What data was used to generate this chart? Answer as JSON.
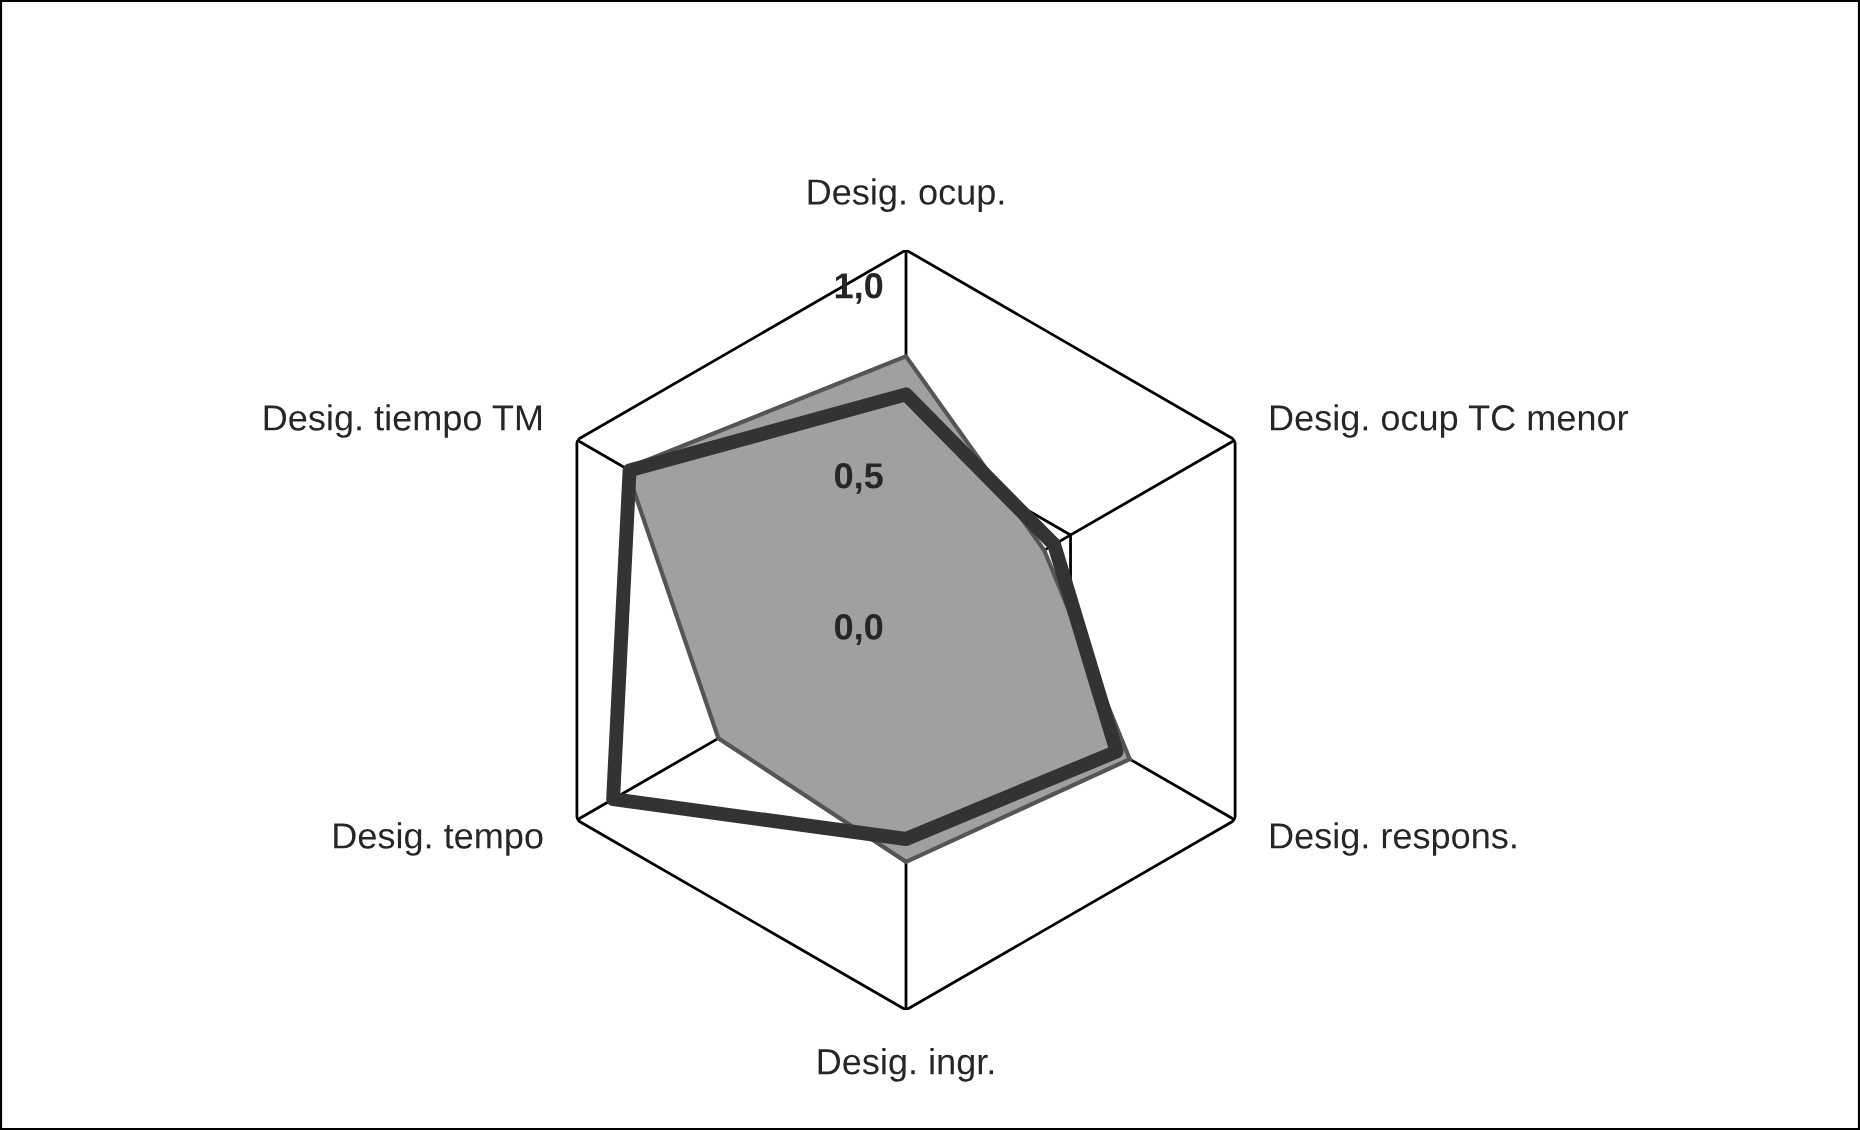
{
  "chart_data": {
    "type": "radar",
    "categories": [
      "Desig. ocup.",
      "Desig. ocup TC menor",
      "Desig. respons.",
      "Desig. ingr.",
      "Desig. tempo",
      "Desig. tiempo TM"
    ],
    "ylim": [
      0,
      1
    ],
    "yticks": [
      {
        "value": 0,
        "label": "0,0"
      },
      {
        "value": 0.5,
        "label": "0,5"
      },
      {
        "value": 1,
        "label": "1,0"
      }
    ],
    "grid": true,
    "series": [
      {
        "type": "area",
        "color": "#a0a0a0",
        "values": [
          0.72,
          0.42,
          0.68,
          0.61,
          0.57,
          0.85
        ]
      },
      {
        "color": "#333333",
        "values": [
          0.62,
          0.45,
          0.64,
          0.55,
          0.89,
          0.84
        ]
      }
    ]
  }
}
